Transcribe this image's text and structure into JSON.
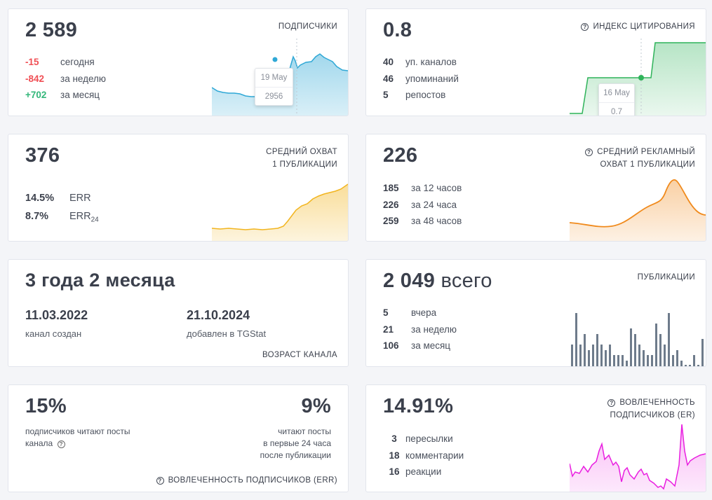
{
  "cards": {
    "subscribers": {
      "value": "2 589",
      "label": "ПОДПИСЧИКИ",
      "stats": [
        {
          "value": "-15",
          "text": "сегодня"
        },
        {
          "value": "-842",
          "text": "за неделю"
        },
        {
          "value": "+702",
          "text": "за месяц"
        }
      ],
      "tooltip": {
        "date": "19 May",
        "value": "2956"
      },
      "chart_color": "#2fa8d6"
    },
    "citation": {
      "value": "0.8",
      "label": "ИНДЕКС ЦИТИРОВАНИЯ",
      "stats": [
        {
          "value": "40",
          "text": "уп. каналов"
        },
        {
          "value": "46",
          "text": "упоминаний"
        },
        {
          "value": "5",
          "text": "репостов"
        }
      ],
      "tooltip": {
        "date": "16 May",
        "value": "0.7"
      },
      "chart_color": "#2fb35a"
    },
    "reach": {
      "value": "376",
      "label_line1": "СРЕДНИЙ ОХВАТ",
      "label_line2": "1 ПУБЛИКАЦИИ",
      "stats": [
        {
          "value": "14.5%",
          "text": "ERR"
        },
        {
          "value": "8.7%",
          "text": "ERR",
          "sub": "24"
        }
      ],
      "chart_color": "#f2b51f"
    },
    "ad_reach": {
      "value": "226",
      "label_line1": "СРЕДНИЙ РЕКЛАМНЫЙ",
      "label_line2": "ОХВАТ 1 ПУБЛИКАЦИИ",
      "stats": [
        {
          "value": "185",
          "text": "за 12 часов"
        },
        {
          "value": "226",
          "text": "за 24 часа"
        },
        {
          "value": "259",
          "text": "за 48 часов"
        }
      ],
      "chart_color": "#f08a1c"
    },
    "age": {
      "value": "3 года 2 месяца",
      "created_date": "11.03.2022",
      "created_text": "канал создан",
      "added_date": "21.10.2024",
      "added_text": "добавлен в TGStat",
      "label": "ВОЗРАСТ КАНАЛА"
    },
    "posts": {
      "value": "2 049",
      "value_suffix": "всего",
      "label": "ПУБЛИКАЦИИ",
      "stats": [
        {
          "value": "5",
          "text": "вчера"
        },
        {
          "value": "21",
          "text": "за неделю"
        },
        {
          "value": "106",
          "text": "за месяц"
        }
      ],
      "chart_color": "#6e7b8b"
    },
    "engagement": {
      "value_left": "15%",
      "text_left_1": "подписчиков читают посты",
      "text_left_2": "канала",
      "value_right": "9%",
      "text_right_1": "читают посты",
      "text_right_2": "в первые 24 часа",
      "text_right_3": "после публикации",
      "label": "ВОВЛЕЧЕННОСТЬ ПОДПИСЧИКОВ (ERR)"
    },
    "err": {
      "value": "14.91%",
      "label_line1": "ВОВЛЕЧЕННОСТЬ",
      "label_line2": "ПОДПИСЧИКОВ (ER)",
      "stats": [
        {
          "value": "3",
          "text": "пересылки"
        },
        {
          "value": "18",
          "text": "комментарии"
        },
        {
          "value": "16",
          "text": "реакции"
        }
      ],
      "chart_color": "#e91ee0"
    }
  },
  "icons": {
    "question": "?"
  }
}
